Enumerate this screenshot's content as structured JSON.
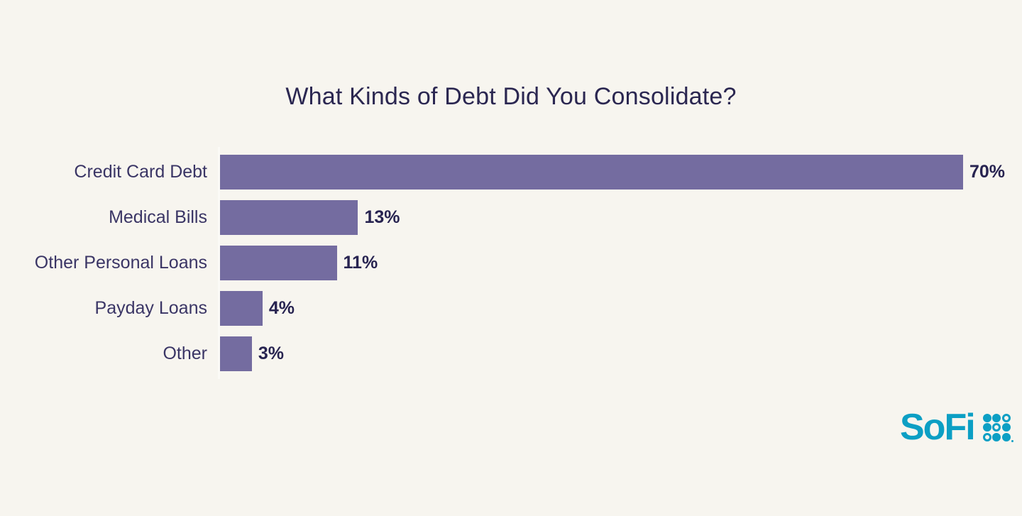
{
  "title": "What Kinds of Debt Did You Consolidate?",
  "chart_data": {
    "type": "bar",
    "orientation": "horizontal",
    "title": "What Kinds of Debt Did You Consolidate?",
    "categories": [
      "Credit Card Debt",
      "Medical Bills",
      "Other Personal Loans",
      "Payday Loans",
      "Other"
    ],
    "values": [
      70,
      13,
      11,
      4,
      3
    ],
    "value_labels": [
      "70%",
      "13%",
      "11%",
      "4%",
      "3%"
    ],
    "xlabel": "",
    "ylabel": "",
    "xlim": [
      0,
      76
    ],
    "grid": false,
    "legend": false,
    "bar_color": "#746CA0",
    "category_label_color": "#3A3565",
    "value_label_color": "#272350",
    "title_color": "#2B2751",
    "background_color": "#F7F5EF"
  },
  "logo": {
    "wordmark": "SoFi",
    "brand_color": "#0C9FC4",
    "dot_pattern": [
      [
        "filled",
        "filled",
        "ring"
      ],
      [
        "filled",
        "ring",
        "filled"
      ],
      [
        "ring",
        "filled",
        "filled"
      ]
    ]
  }
}
